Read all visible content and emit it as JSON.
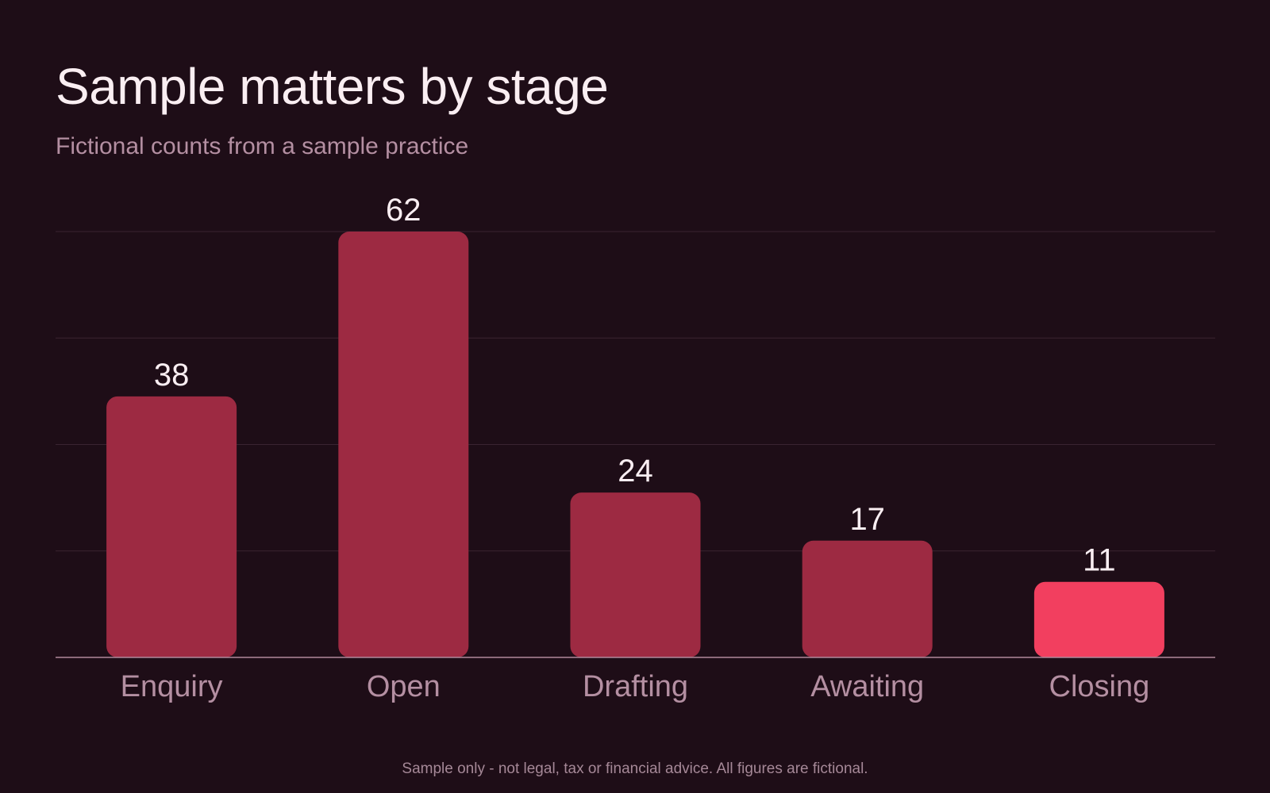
{
  "title": "Sample matters by stage",
  "subtitle": "Fictional counts from a sample practice",
  "footnote": "Sample only - not legal, tax or financial advice. All figures are fictional.",
  "colors": {
    "background": "#1e0d17",
    "bar": "#9d2a42",
    "highlight_bar": "#f23f5f",
    "gridline": "#3a2431",
    "baseline": "#b08a9c",
    "value_label": "#faeef2",
    "category_label": "#b48fa2"
  },
  "chart_data": {
    "type": "bar",
    "title": "Sample matters by stage",
    "subtitle": "Fictional counts from a sample practice",
    "categories": [
      "Enquiry",
      "Open",
      "Drafting",
      "Awaiting",
      "Closing"
    ],
    "values": [
      38,
      62,
      24,
      17,
      11
    ],
    "highlight_index": 4,
    "ylim": [
      0,
      62
    ],
    "gridlines": 4,
    "grid": true,
    "xlabel": "",
    "ylabel": ""
  }
}
